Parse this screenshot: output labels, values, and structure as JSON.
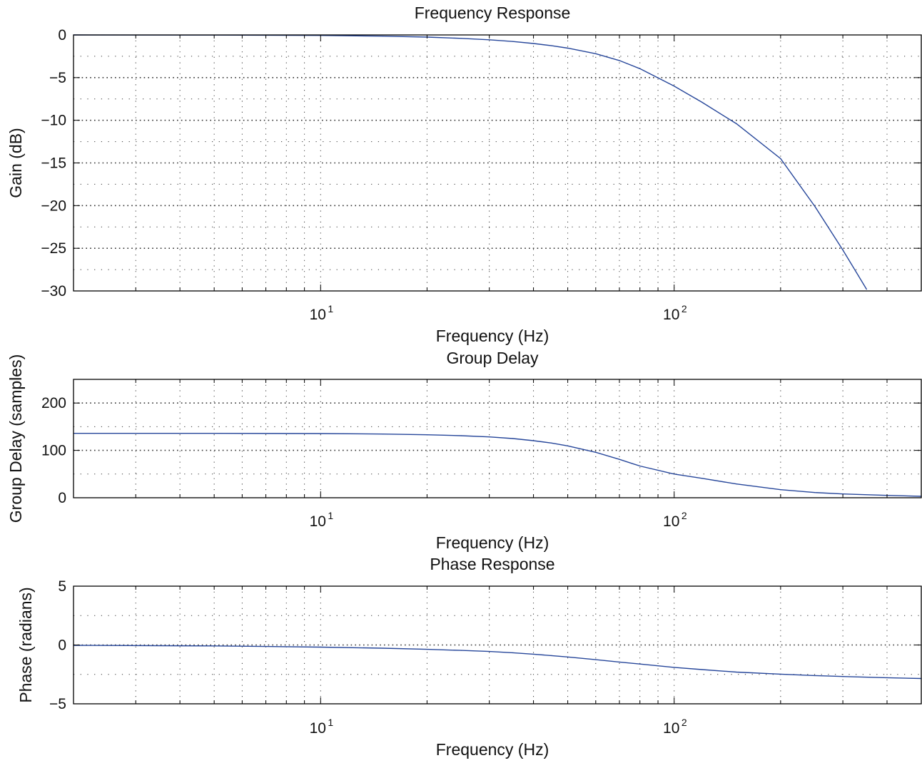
{
  "line_color": "#26469a",
  "grid_color": "#333333",
  "axis_color": "#000000",
  "chart_data": [
    {
      "type": "line",
      "title": "Frequency Response",
      "xlabel": "Frequency (Hz)",
      "ylabel": "Gain (dB)",
      "xscale": "log",
      "xlim": [
        2.0,
        500
      ],
      "ylim": [
        -30,
        0
      ],
      "yticks": [
        0,
        -5,
        -10,
        -15,
        -20,
        -25,
        -30
      ],
      "ytick_labels": [
        "0",
        "−5",
        "−10",
        "−15",
        "−20",
        "−25",
        "−30"
      ],
      "yminor": [
        -2.5,
        -7.5,
        -12.5,
        -17.5,
        -22.5,
        -27.5
      ],
      "xticks": [
        10,
        100
      ],
      "xtick_labels": [
        {
          "base": "10",
          "exp": "1"
        },
        {
          "base": "10",
          "exp": "2"
        }
      ],
      "grid": true,
      "series": [
        {
          "x": [
            2,
            5,
            10,
            15,
            20,
            25,
            30,
            35,
            40,
            45,
            50,
            60,
            70,
            80,
            100,
            120,
            150,
            200,
            250,
            300,
            350
          ],
          "y": [
            0,
            -0.02,
            -0.06,
            -0.14,
            -0.25,
            -0.4,
            -0.57,
            -0.77,
            -1.0,
            -1.26,
            -1.55,
            -2.2,
            -3.0,
            -3.95,
            -6.0,
            -7.9,
            -10.4,
            -14.5,
            -20.1,
            -25.2,
            -29.8
          ]
        }
      ]
    },
    {
      "type": "line",
      "title": "Group Delay",
      "xlabel": "Frequency (Hz)",
      "ylabel": "Group Delay (samples)",
      "xscale": "log",
      "xlim": [
        2.0,
        500
      ],
      "ylim": [
        0,
        250
      ],
      "yticks": [
        0,
        100,
        200
      ],
      "ytick_labels": [
        "0",
        "100",
        "200"
      ],
      "yminor": [
        50,
        150,
        250
      ],
      "xticks": [
        10,
        100
      ],
      "xtick_labels": [
        {
          "base": "10",
          "exp": "1"
        },
        {
          "base": "10",
          "exp": "2"
        }
      ],
      "grid": true,
      "series": [
        {
          "x": [
            2,
            5,
            10,
            15,
            20,
            25,
            30,
            35,
            40,
            45,
            50,
            60,
            70,
            80,
            100,
            120,
            150,
            200,
            250,
            300,
            400,
            500
          ],
          "y": [
            136,
            136,
            135.5,
            134.5,
            133,
            131,
            128.5,
            125,
            120.5,
            115.5,
            109.5,
            96,
            81,
            67,
            50,
            41,
            29,
            17,
            11,
            8,
            5,
            3
          ]
        }
      ]
    },
    {
      "type": "line",
      "title": "Phase Response",
      "xlabel": "Frequency (Hz)",
      "ylabel": "Phase (radians)",
      "xscale": "log",
      "xlim": [
        2.0,
        500
      ],
      "ylim": [
        -5,
        5
      ],
      "yticks": [
        5,
        0,
        -5
      ],
      "ytick_labels": [
        "5",
        "0",
        "−5"
      ],
      "yminor": [
        2.5,
        -2.5
      ],
      "xticks": [
        10,
        100
      ],
      "xtick_labels": [
        {
          "base": "10",
          "exp": "1"
        },
        {
          "base": "10",
          "exp": "2"
        }
      ],
      "grid": true,
      "series": [
        {
          "x": [
            2,
            5,
            10,
            15,
            20,
            25,
            30,
            35,
            40,
            45,
            50,
            60,
            70,
            80,
            100,
            120,
            150,
            200,
            250,
            300,
            400,
            500
          ],
          "y": [
            -0.03,
            -0.08,
            -0.18,
            -0.27,
            -0.37,
            -0.46,
            -0.55,
            -0.66,
            -0.78,
            -0.9,
            -1.02,
            -1.25,
            -1.45,
            -1.62,
            -1.9,
            -2.09,
            -2.3,
            -2.48,
            -2.6,
            -2.68,
            -2.78,
            -2.85
          ]
        }
      ]
    }
  ]
}
